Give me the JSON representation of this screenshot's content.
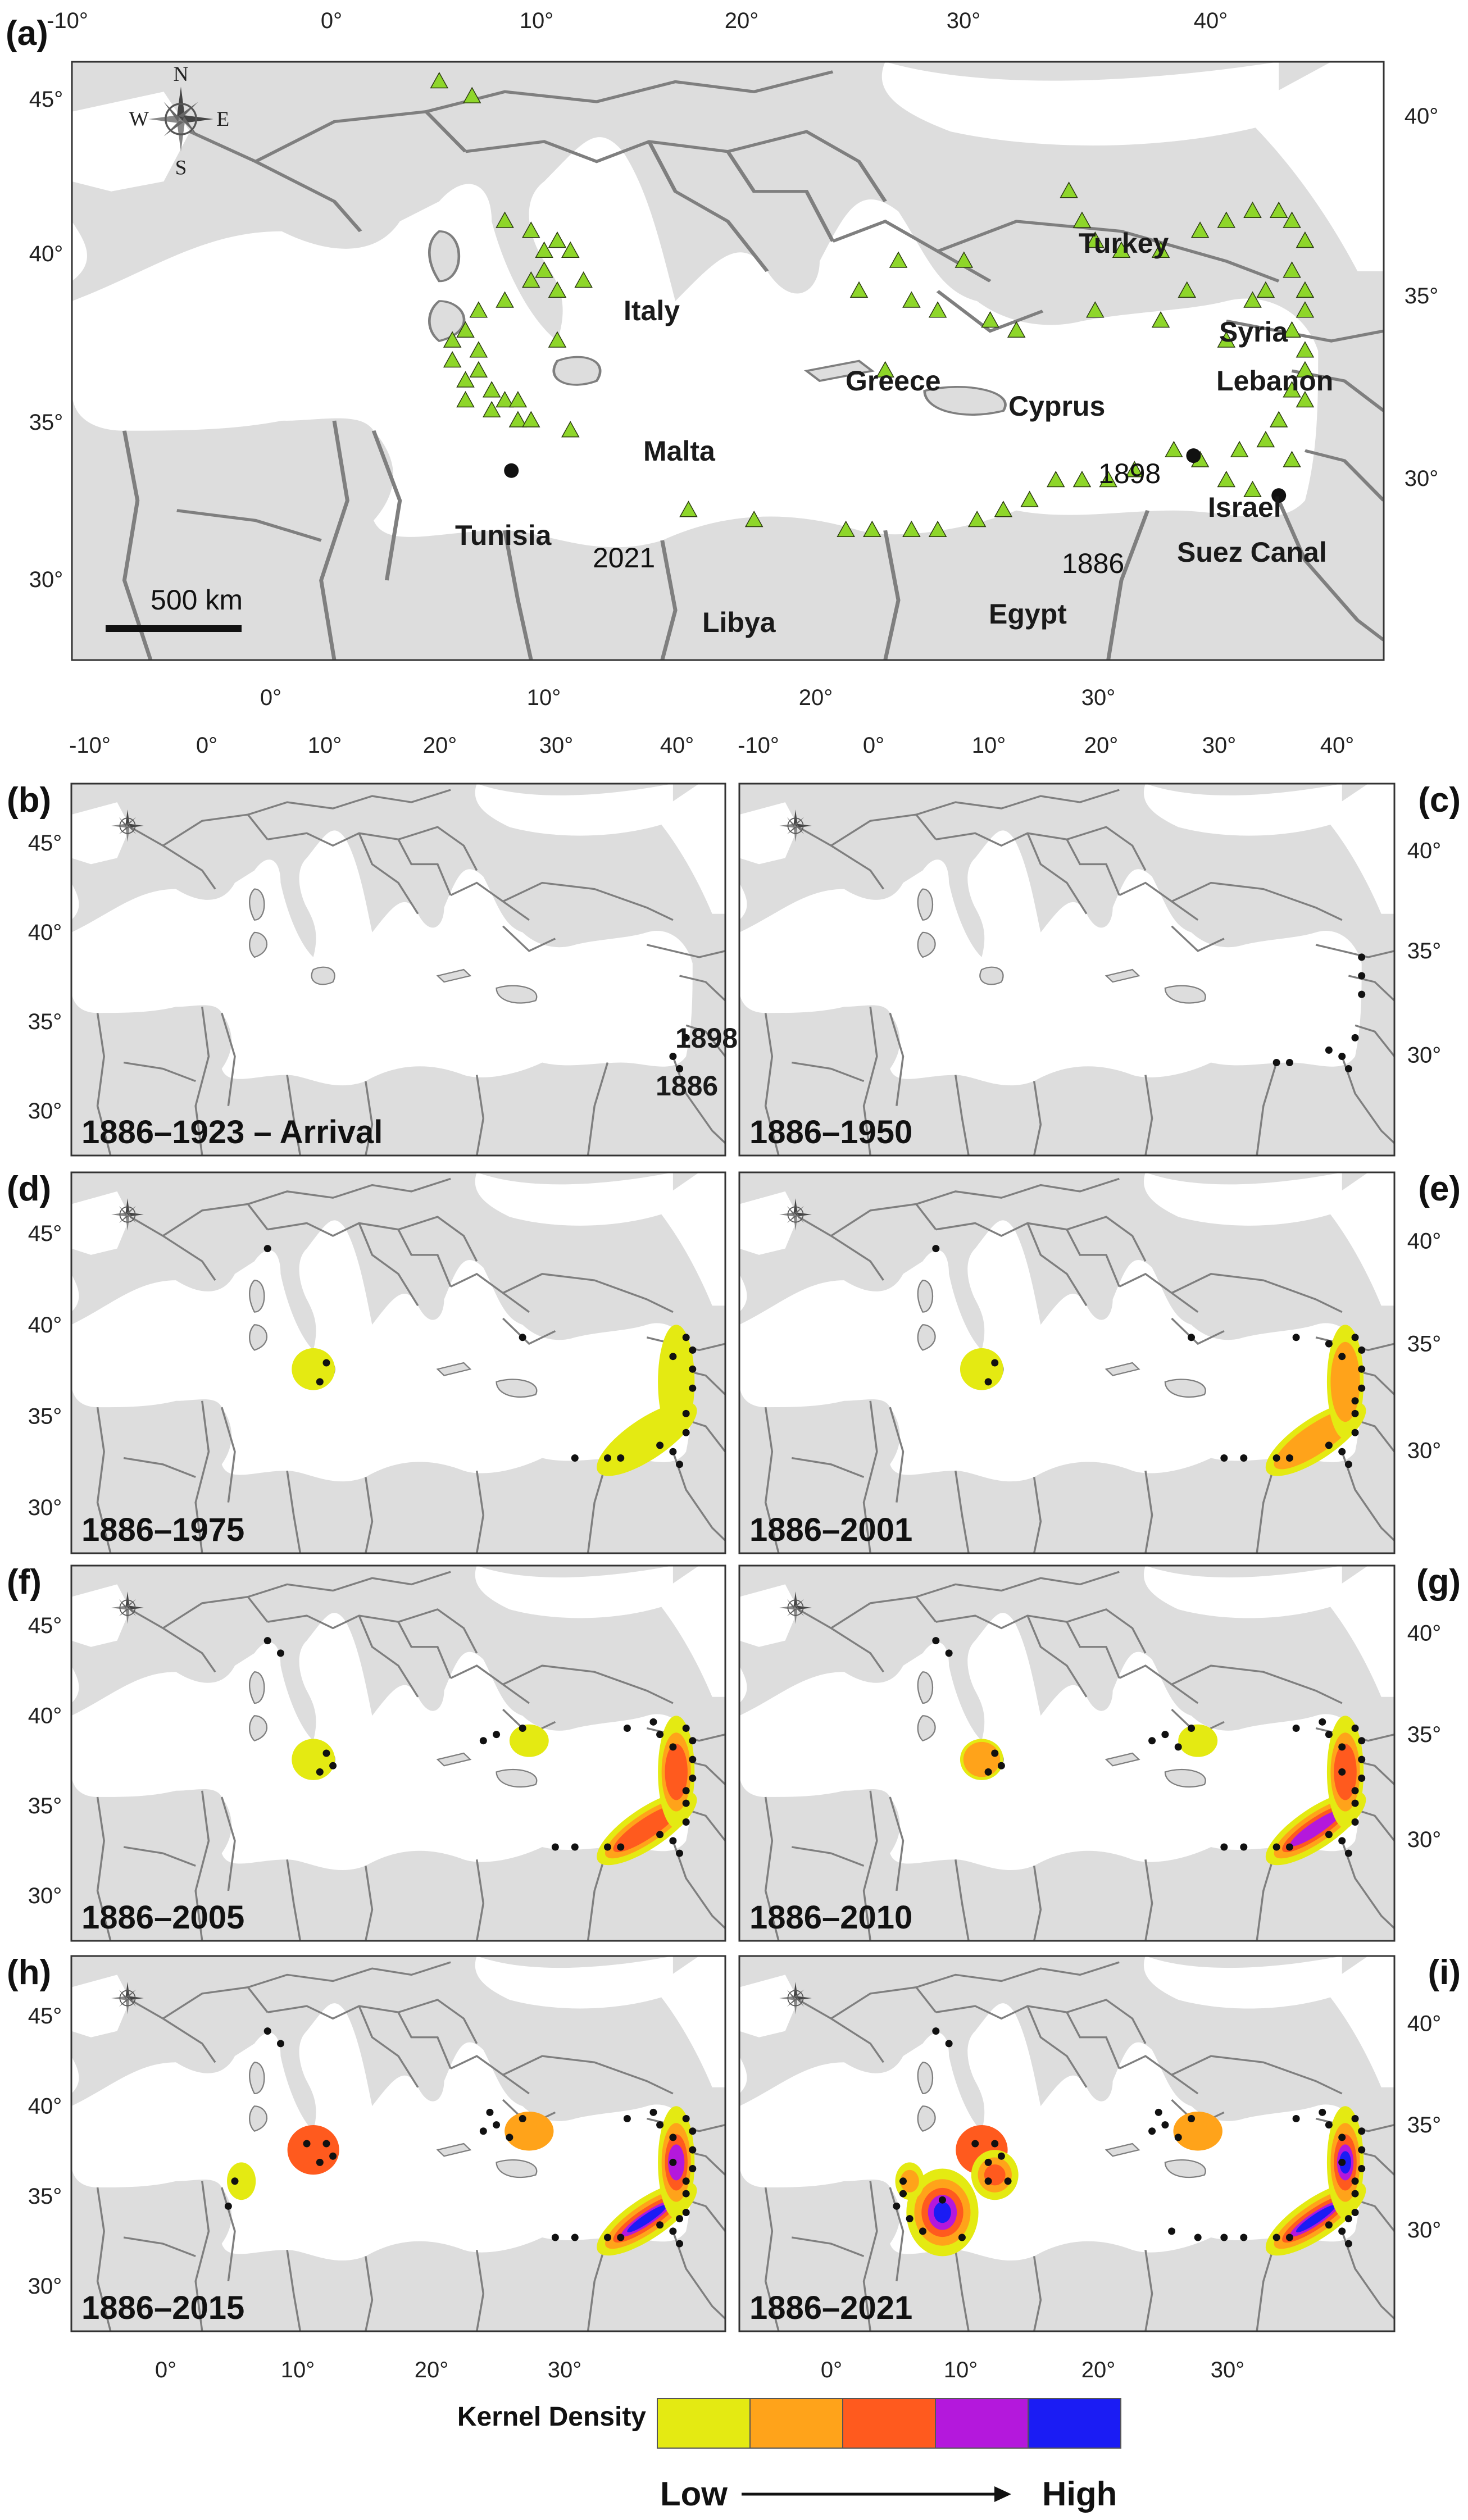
{
  "figure": {
    "panel_a": {
      "label": "(a)",
      "lon_ticks_top": [
        "-10°",
        "0°",
        "10°",
        "20°",
        "30°",
        "40°"
      ],
      "lon_ticks_bottom": [
        "0°",
        "10°",
        "20°",
        "30°"
      ],
      "lat_ticks_left": [
        "45°",
        "40°",
        "35°",
        "30°"
      ],
      "lat_ticks_right": [
        "40°",
        "35°",
        "30°"
      ],
      "places": [
        "Italy",
        "Turkey",
        "Syria",
        "Lebanon",
        "Greece",
        "Cyprus",
        "Malta",
        "Tunisia",
        "Libya",
        "Egypt",
        "Israel",
        "Suez Canal"
      ],
      "years": [
        "1898",
        "1886",
        "2021"
      ],
      "scale_bar": "500 km",
      "compass": [
        "N",
        "S",
        "E",
        "W"
      ]
    },
    "small_panels": {
      "lon_ticks_top_left": [
        "-10°",
        "0°",
        "10°",
        "20°",
        "30°",
        "40°"
      ],
      "lon_ticks_top_right": [
        "-10°",
        "0°",
        "10°",
        "20°",
        "30°",
        "40°"
      ],
      "lon_ticks_bottom_left": [
        "0°",
        "10°",
        "20°",
        "30°"
      ],
      "lon_ticks_bottom_right": [
        "0°",
        "10°",
        "20°",
        "30°"
      ],
      "lat_ticks_left": [
        "45°",
        "40°",
        "35°",
        "30°"
      ],
      "lat_ticks_right": [
        "40°",
        "35°",
        "30°"
      ],
      "panels": [
        {
          "label": "(b)",
          "period": "1886–1923 – Arrival",
          "years": [
            "1898",
            "1886"
          ],
          "stage": 0
        },
        {
          "label": "(c)",
          "period": "1886–1950",
          "stage": 1
        },
        {
          "label": "(d)",
          "period": "1886–1975",
          "stage": 2
        },
        {
          "label": "(e)",
          "period": "1886–2001",
          "stage": 3
        },
        {
          "label": "(f)",
          "period": "1886–2005",
          "stage": 4
        },
        {
          "label": "(g)",
          "period": "1886–2010",
          "stage": 5
        },
        {
          "label": "(h)",
          "period": "1886–2015",
          "stage": 6
        },
        {
          "label": "(i)",
          "period": "1886–2021",
          "stage": 7
        }
      ]
    },
    "legend": {
      "title": "Kernel Density",
      "colors": [
        "#e4ea12",
        "#ffa31a",
        "#ff5a1e",
        "#b418dc",
        "#1b1cf4"
      ],
      "low": "Low",
      "high": "High"
    },
    "map_colors": {
      "land": "#dddddd",
      "sea": "#ffffff",
      "border": "#7f7f7f",
      "frame": "#333333",
      "triangle": "#8ed62a",
      "point": "#111111"
    }
  }
}
